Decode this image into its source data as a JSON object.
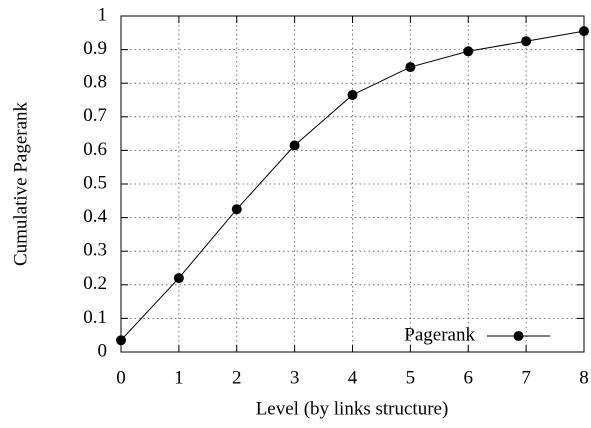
{
  "chart_data": {
    "type": "line",
    "xlabel": "Level (by links structure)",
    "ylabel": "Cumulative Pagerank",
    "x": [
      0,
      1,
      2,
      3,
      4,
      5,
      6,
      7,
      8
    ],
    "series": [
      {
        "name": "Pagerank",
        "color": "#000000",
        "values": [
          0.035,
          0.22,
          0.425,
          0.615,
          0.765,
          0.848,
          0.895,
          0.925,
          0.955
        ]
      }
    ],
    "xlim": [
      0,
      8
    ],
    "xticks": [
      0,
      1,
      2,
      3,
      4,
      5,
      6,
      7,
      8
    ],
    "ylim": [
      0,
      1
    ],
    "yticks": [
      0,
      0.1,
      0.2,
      0.3,
      0.4,
      0.5,
      0.6,
      0.7,
      0.8,
      0.9,
      1
    ],
    "grid": true,
    "legend": "lower right"
  }
}
